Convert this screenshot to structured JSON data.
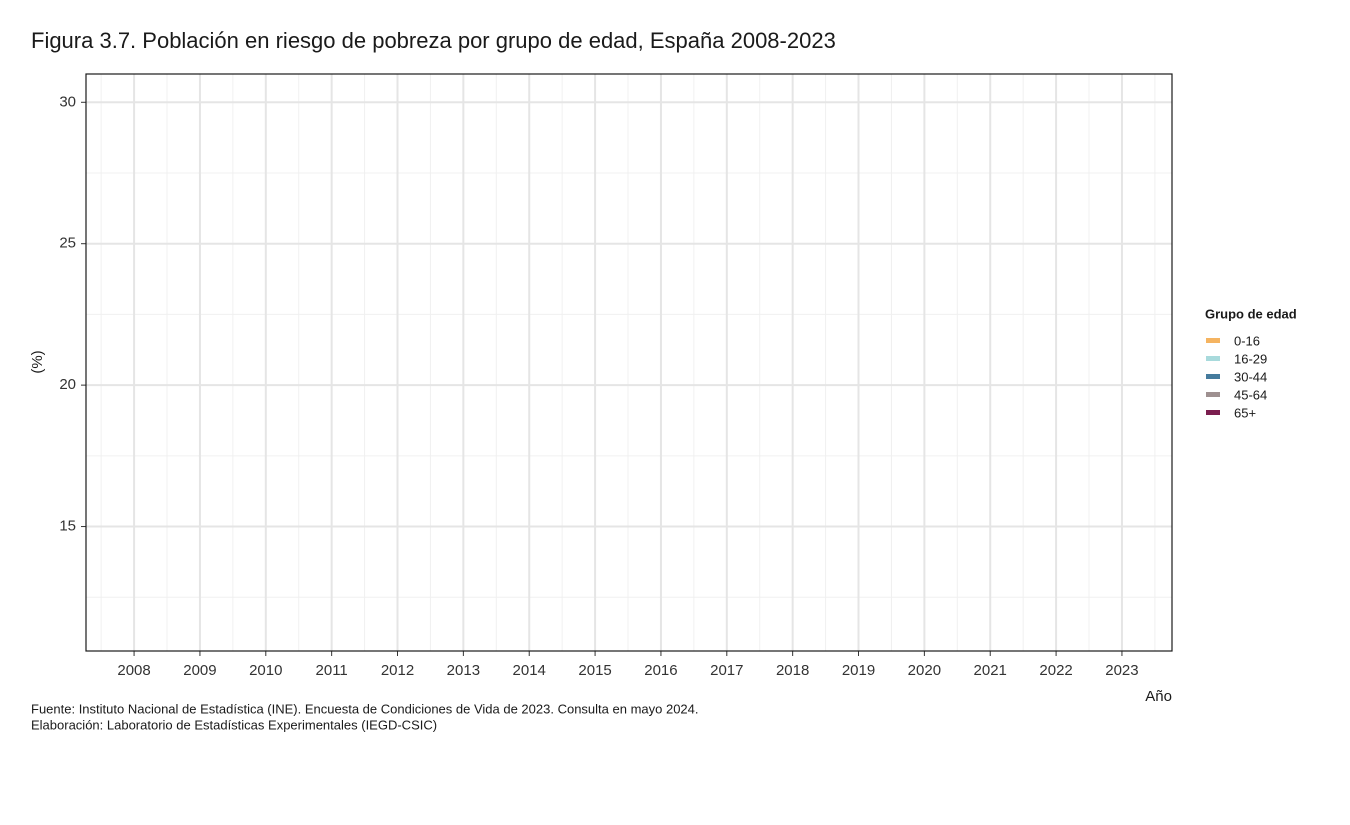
{
  "chart_data": {
    "type": "line",
    "title": "Figura 3.7. Población en riesgo de pobreza por grupo de edad, España 2008-2023",
    "x_label": "Año",
    "y_label": "(%)",
    "caption": [
      "Fuente: Instituto Nacional de Estadística (INE). Encuesta de Condiciones de Vida de 2023. Consulta en mayo 2024.",
      "Elaboración: Laboratorio de Estadísticas Experimentales (IEGD-CSIC)"
    ],
    "legend_title": "Grupo de edad",
    "legend": "right",
    "grid": true,
    "x": [
      2008,
      2009,
      2010,
      2011,
      2012,
      2013,
      2014,
      2015,
      2016,
      2017,
      2018,
      2019,
      2020,
      2021,
      2022,
      2023
    ],
    "xlim": [
      2007.27,
      2023.76
    ],
    "xticks": [
      2008,
      2009,
      2010,
      2011,
      2012,
      2013,
      2014,
      2015,
      2016,
      2017,
      2018,
      2019,
      2020,
      2021,
      2022,
      2023
    ],
    "ylim": [
      10.6,
      31.0
    ],
    "yticks": [
      15,
      20,
      25,
      30
    ],
    "series": [
      {
        "name": "0-16",
        "color": "#f5b461",
        "values": [
          null,
          null,
          null,
          null,
          null,
          null,
          null,
          null,
          null,
          null,
          null,
          null,
          null,
          null,
          null,
          null
        ]
      },
      {
        "name": "16-29",
        "color": "#a8dadc",
        "values": [
          null,
          null,
          null,
          null,
          null,
          null,
          null,
          null,
          null,
          null,
          null,
          null,
          null,
          null,
          null,
          null
        ]
      },
      {
        "name": "30-44",
        "color": "#457b9d",
        "values": [
          null,
          null,
          null,
          null,
          null,
          null,
          null,
          null,
          null,
          null,
          null,
          null,
          null,
          null,
          null,
          null
        ]
      },
      {
        "name": "45-64",
        "color": "#9e9090",
        "values": [
          null,
          null,
          null,
          null,
          null,
          null,
          null,
          null,
          null,
          null,
          null,
          null,
          null,
          null,
          null,
          null
        ]
      },
      {
        "name": "65+",
        "color": "#7b1e4f",
        "values": [
          null,
          null,
          null,
          null,
          null,
          null,
          null,
          null,
          null,
          null,
          null,
          null,
          null,
          null,
          null,
          null
        ]
      }
    ]
  }
}
